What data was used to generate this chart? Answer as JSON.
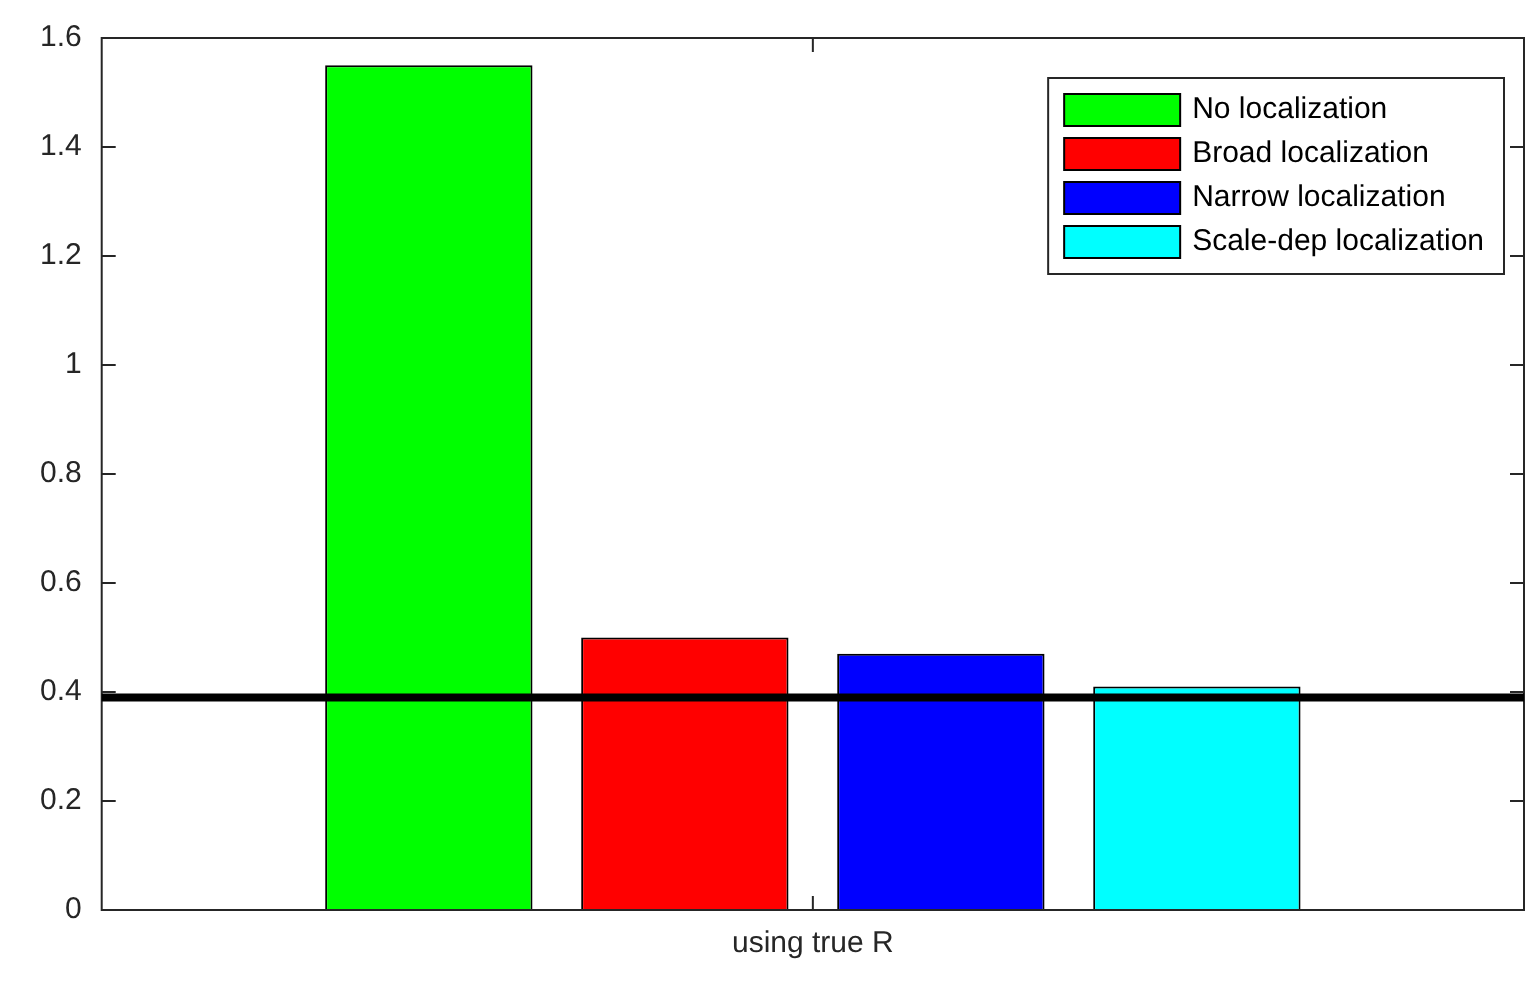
{
  "chart_data": {
    "type": "bar",
    "categories": [
      "using true R"
    ],
    "series": [
      {
        "name": "No localization",
        "color": "#00ff00",
        "values": [
          1.55
        ]
      },
      {
        "name": "Broad localization",
        "color": "#ff0000",
        "values": [
          0.5
        ]
      },
      {
        "name": "Narrow localization",
        "color": "#0000ff",
        "values": [
          0.47
        ]
      },
      {
        "name": "Scale-dep localization",
        "color": "#00ffff",
        "values": [
          0.41
        ]
      }
    ],
    "ylim": [
      0,
      1.6
    ],
    "yticks": [
      0,
      0.2,
      0.4,
      0.6,
      0.8,
      1,
      1.2,
      1.4,
      1.6
    ],
    "ref_lines": [
      {
        "axis": "y",
        "value": 0.39,
        "color": "#000000"
      }
    ],
    "grid": false,
    "legend": "top right"
  }
}
